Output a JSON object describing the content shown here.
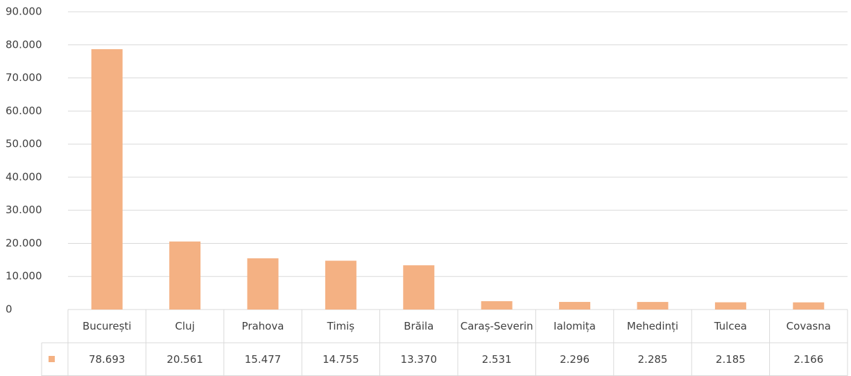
{
  "chart_data": {
    "type": "bar",
    "categories": [
      "București",
      "Cluj",
      "Prahova",
      "Timiș",
      "Brăila",
      "Caraș-Severin",
      "Ialomița",
      "Mehedinți",
      "Tulcea",
      "Covasna"
    ],
    "values": [
      78693,
      20561,
      15477,
      14755,
      13370,
      2531,
      2296,
      2285,
      2185,
      2166
    ],
    "value_labels": [
      "78.693",
      "20.561",
      "15.477",
      "14.755",
      "13.370",
      "2.531",
      "2.296",
      "2.285",
      "2.185",
      "2.166"
    ],
    "color": "#f4b183",
    "ylim": [
      0,
      90000
    ],
    "yticks": [
      0,
      {
        "value": 10000,
        "label": "10.000"
      },
      {
        "value": 20000,
        "label": "20.000"
      },
      {
        "value": 30000,
        "label": "30.000"
      },
      {
        "value": 40000,
        "label": "40.000"
      },
      {
        "value": 50000,
        "label": "50.000"
      },
      {
        "value": 60000,
        "label": "60.000"
      },
      {
        "value": 70000,
        "label": "70.000"
      },
      {
        "value": 80000,
        "label": "80.000"
      },
      {
        "value": 90000,
        "label": "90.000"
      }
    ],
    "grid": true
  }
}
